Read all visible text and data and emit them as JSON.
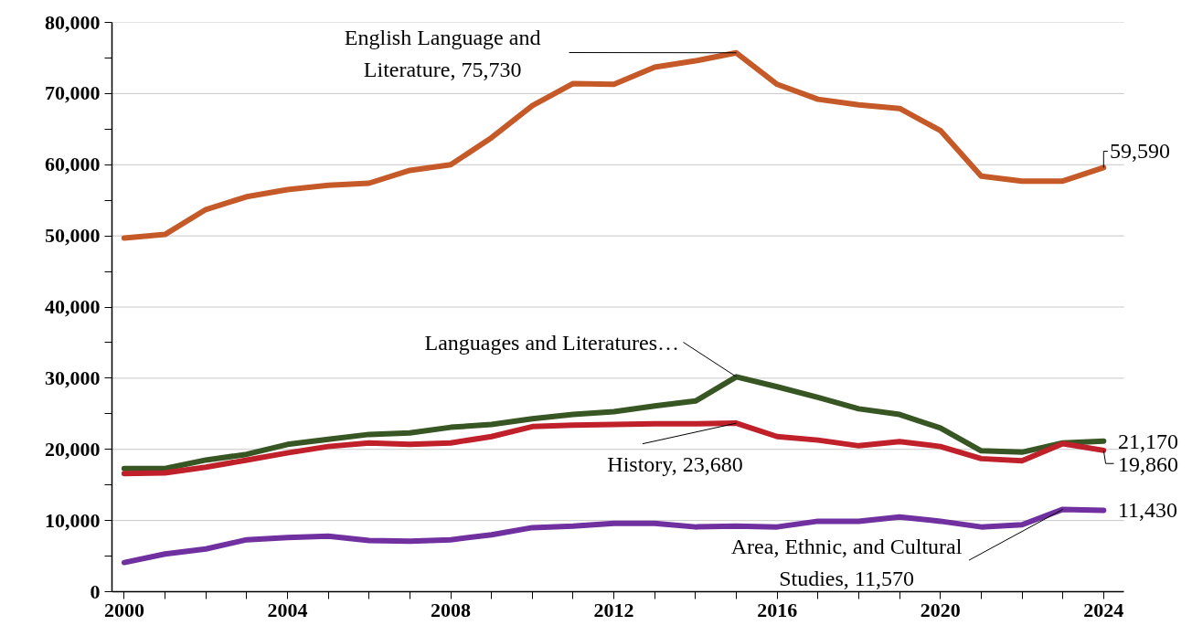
{
  "chart_data": {
    "type": "line",
    "x": [
      2000,
      2001,
      2002,
      2003,
      2004,
      2005,
      2006,
      2007,
      2008,
      2009,
      2010,
      2011,
      2012,
      2013,
      2014,
      2015,
      2016,
      2017,
      2018,
      2019,
      2020,
      2021,
      2022,
      2023,
      2024
    ],
    "series": [
      {
        "color": "#c55a28",
        "values": [
          49700,
          50200,
          53700,
          55500,
          56500,
          57100,
          57400,
          59200,
          60000,
          63800,
          68300,
          71400,
          71300,
          73700,
          74600,
          75730,
          71300,
          69200,
          68400,
          67900,
          64800,
          58400,
          57700,
          57700,
          59590
        ]
      },
      {
        "color": "#375623",
        "values": [
          17300,
          17300,
          18500,
          19300,
          20700,
          21400,
          22100,
          22300,
          23100,
          23500,
          24300,
          24900,
          25300,
          26100,
          26800,
          30200,
          28800,
          27300,
          25700,
          24900,
          23000,
          19800,
          19600,
          20900,
          21170
        ]
      },
      {
        "color": "#c0202a",
        "values": [
          16600,
          16700,
          17500,
          18500,
          19500,
          20400,
          20900,
          20700,
          20900,
          21800,
          23200,
          23400,
          23500,
          23600,
          23600,
          23680,
          21800,
          21300,
          20500,
          21100,
          20400,
          18700,
          18400,
          20800,
          19860
        ]
      },
      {
        "color": "#7030a0",
        "values": [
          4100,
          5300,
          6000,
          7300,
          7600,
          7800,
          7200,
          7100,
          7300,
          8000,
          9000,
          9200,
          9600,
          9600,
          9100,
          9200,
          9100,
          9900,
          9900,
          10500,
          9900,
          9100,
          9400,
          11570,
          11430
        ]
      }
    ],
    "xlim": [
      1999.7,
      2024.5
    ],
    "xticks": [
      2000,
      {
        "value": 2001,
        "label": null
      },
      {
        "value": 2002,
        "label": null
      },
      {
        "value": 2003,
        "label": null
      },
      2004,
      {
        "value": 2005,
        "label": null
      },
      {
        "value": 2006,
        "label": null
      },
      {
        "value": 2007,
        "label": null
      },
      2008,
      {
        "value": 2009,
        "label": null
      },
      {
        "value": 2010,
        "label": null
      },
      {
        "value": 2011,
        "label": null
      },
      2012,
      {
        "value": 2013,
        "label": null
      },
      {
        "value": 2014,
        "label": null
      },
      {
        "value": 2015,
        "label": null
      },
      2016,
      {
        "value": 2017,
        "label": null
      },
      {
        "value": 2018,
        "label": null
      },
      {
        "value": 2019,
        "label": null
      },
      2020,
      {
        "value": 2021,
        "label": null
      },
      {
        "value": 2022,
        "label": null
      },
      {
        "value": 2023,
        "label": null
      },
      2024
    ],
    "ylim": [
      0,
      80000
    ],
    "yticks": [
      {
        "value": 0,
        "label": "0"
      },
      {
        "value": 5000,
        "label": null
      },
      {
        "value": 10000,
        "label": "10,000"
      },
      {
        "value": 15000,
        "label": null
      },
      {
        "value": 20000,
        "label": "20,000"
      },
      {
        "value": 25000,
        "label": null
      },
      {
        "value": 30000,
        "label": "30,000"
      },
      {
        "value": 35000,
        "label": null
      },
      {
        "value": 40000,
        "label": "40,000"
      },
      {
        "value": 45000,
        "label": null
      },
      {
        "value": 50000,
        "label": "50,000"
      },
      {
        "value": 55000,
        "label": null
      },
      {
        "value": 60000,
        "label": "60,000"
      },
      {
        "value": 65000,
        "label": null
      },
      {
        "value": 70000,
        "label": "70,000"
      },
      {
        "value": 75000,
        "label": null
      },
      {
        "value": 80000,
        "label": "80,000"
      }
    ],
    "grid": "y",
    "annotations": [
      {
        "text": "English Language and\nLiterature, 75,730",
        "x": 2015,
        "y": 75730
      },
      {
        "text": "59,590",
        "x": 2024,
        "y": 59590
      },
      {
        "text": "Languages and Literatures…",
        "x": 2015,
        "y": 30200
      },
      {
        "text": "History, 23,680",
        "x": 2015,
        "y": 23680
      },
      {
        "text": "21,170",
        "x": 2024,
        "y": 21170
      },
      {
        "text": "19,860",
        "x": 2024,
        "y": 19860
      },
      {
        "text": "11,430",
        "x": 2024,
        "y": 11430
      },
      {
        "text": "Area, Ethnic, and Cultural\nStudies, 11,570",
        "x": 2023,
        "y": 11570
      }
    ]
  }
}
